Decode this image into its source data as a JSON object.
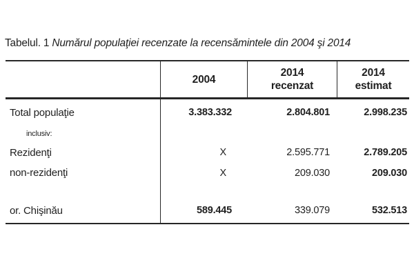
{
  "title": {
    "prefix": "Tabelul. 1",
    "text": "Numărul populaţiei recenzate la recensămintele din 2004 şi 2014"
  },
  "colors": {
    "background": "#ffffff",
    "text": "#1f1f1f",
    "border": "#262626"
  },
  "table": {
    "header": {
      "col_label": "",
      "col_2004": "2004",
      "col_2014_recenzat_line1": "2014",
      "col_2014_recenzat_line2": "recenzat",
      "col_2014_estimat_line1": "2014",
      "col_2014_estimat_line2": "estimat"
    },
    "rows": [
      {
        "label": "Total populaţie",
        "y2004": "3.383.332",
        "y2014_recenzat": "2.804.801",
        "y2014_estimat": "2.998.235"
      },
      {
        "label": "inclusiv:",
        "y2004": "",
        "y2014_recenzat": "",
        "y2014_estimat": ""
      },
      {
        "label": "Rezidenţi",
        "y2004": "X",
        "y2014_recenzat": "2.595.771",
        "y2014_estimat": "2.789.205"
      },
      {
        "label": "non-rezidenţi",
        "y2004": "X",
        "y2014_recenzat": "209.030",
        "y2014_estimat": "209.030"
      },
      {
        "label": "",
        "y2004": "",
        "y2014_recenzat": "",
        "y2014_estimat": ""
      },
      {
        "label": "or. Chişinău",
        "y2004": "589.445",
        "y2014_recenzat": "339.079",
        "y2014_estimat": "532.513"
      }
    ]
  }
}
